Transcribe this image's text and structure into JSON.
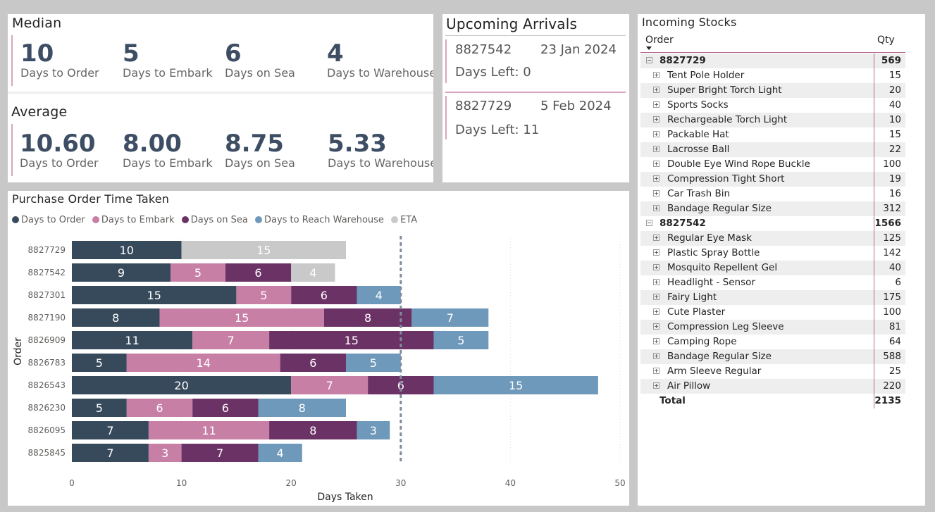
{
  "median": {
    "title": "Median",
    "items": [
      {
        "value": "10",
        "label": "Days to Order"
      },
      {
        "value": "5",
        "label": "Days to Embark"
      },
      {
        "value": "6",
        "label": "Days on Sea"
      },
      {
        "value": "4",
        "label": "Days to Warehouse"
      }
    ]
  },
  "average": {
    "title": "Average",
    "items": [
      {
        "value": "10.60",
        "label": "Days to Order"
      },
      {
        "value": "8.00",
        "label": "Days to Embark"
      },
      {
        "value": "8.75",
        "label": "Days on Sea"
      },
      {
        "value": "5.33",
        "label": "Days to Warehouse"
      }
    ]
  },
  "arrivals": {
    "title": "Upcoming Arrivals",
    "items": [
      {
        "order": "8827542",
        "date": "23 Jan 2024",
        "days_left": "Days Left: 0"
      },
      {
        "order": "8827729",
        "date": "5 Feb 2024",
        "days_left": "Days Left: 11"
      }
    ]
  },
  "stocks": {
    "title": "Incoming Stocks",
    "col_order": "Order",
    "col_qty": "Qty",
    "groups": [
      {
        "order": "8827729",
        "qty": "569",
        "items": [
          {
            "name": "Tent Pole Holder",
            "qty": "15"
          },
          {
            "name": "Super Bright Torch Light",
            "qty": "20"
          },
          {
            "name": "Sports Socks",
            "qty": "40"
          },
          {
            "name": "Rechargeable Torch Light",
            "qty": "10"
          },
          {
            "name": "Packable Hat",
            "qty": "15"
          },
          {
            "name": "Lacrosse Ball",
            "qty": "22"
          },
          {
            "name": "Double Eye Wind Rope Buckle",
            "qty": "100"
          },
          {
            "name": "Compression Tight Short",
            "qty": "19"
          },
          {
            "name": "Car Trash Bin",
            "qty": "16"
          },
          {
            "name": "Bandage Regular Size",
            "qty": "312"
          }
        ]
      },
      {
        "order": "8827542",
        "qty": "1566",
        "items": [
          {
            "name": "Regular Eye Mask",
            "qty": "125"
          },
          {
            "name": "Plastic Spray Bottle",
            "qty": "142"
          },
          {
            "name": "Mosquito Repellent Gel",
            "qty": "40"
          },
          {
            "name": "Headlight - Sensor",
            "qty": "6"
          },
          {
            "name": "Fairy Light",
            "qty": "175"
          },
          {
            "name": "Cute Plaster",
            "qty": "100"
          },
          {
            "name": "Compression Leg Sleeve",
            "qty": "81"
          },
          {
            "name": "Camping Rope",
            "qty": "64"
          },
          {
            "name": "Bandage Regular Size",
            "qty": "588"
          },
          {
            "name": "Arm Sleeve Regular",
            "qty": "25"
          },
          {
            "name": "Air Pillow",
            "qty": "220"
          }
        ]
      }
    ],
    "total_label": "Total",
    "total_qty": "2135"
  },
  "chart_data": {
    "type": "bar",
    "orientation": "horizontal",
    "stacked": true,
    "title": "Purchase Order Time Taken",
    "xlabel": "Days Taken",
    "ylabel": "Order",
    "xlim": [
      0,
      50
    ],
    "xticks": [
      0,
      10,
      20,
      30,
      40,
      50
    ],
    "reference_line": 30,
    "grid": true,
    "legend_position": "top-left",
    "categories": [
      "8827729",
      "8827542",
      "8827301",
      "8827190",
      "8826909",
      "8826783",
      "8826543",
      "8826230",
      "8826095",
      "8825845"
    ],
    "series": [
      {
        "name": "Days to Order",
        "color": "#374a5c",
        "values": [
          10,
          9,
          15,
          8,
          11,
          5,
          20,
          5,
          7,
          7
        ]
      },
      {
        "name": "Days to Embark",
        "color": "#c87fa6",
        "values": [
          null,
          5,
          5,
          15,
          7,
          14,
          7,
          6,
          11,
          3
        ]
      },
      {
        "name": "Days on Sea",
        "color": "#6b3266",
        "values": [
          null,
          6,
          6,
          8,
          15,
          6,
          6,
          6,
          8,
          7
        ]
      },
      {
        "name": "Days to Reach Warehouse",
        "color": "#6e99ba",
        "values": [
          null,
          null,
          4,
          7,
          5,
          5,
          15,
          8,
          3,
          4
        ]
      },
      {
        "name": "ETA",
        "color": "#c9c9c9",
        "values": [
          15,
          4,
          null,
          null,
          null,
          null,
          null,
          null,
          null,
          null
        ]
      }
    ]
  }
}
